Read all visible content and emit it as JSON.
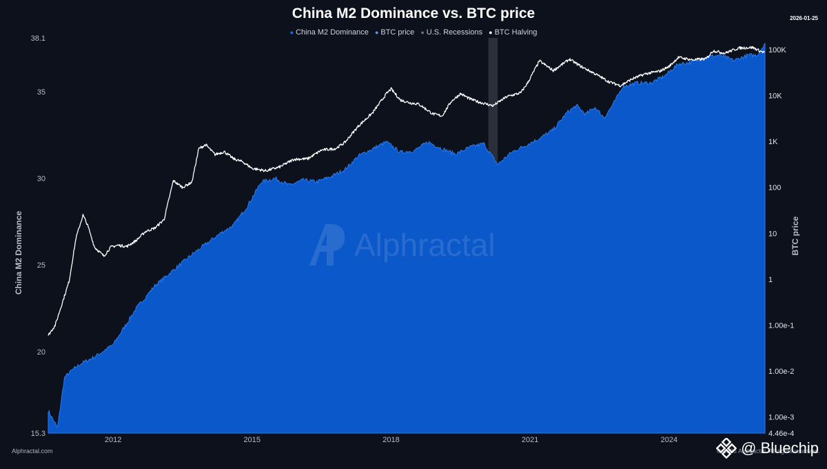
{
  "header": {
    "title": "China M2 Dominance vs. BTC price",
    "date": "2026-01-25"
  },
  "legend": [
    {
      "label": "China M2 Dominance",
      "color": "#1f6fe6"
    },
    {
      "label": "BTC price",
      "color": "#5b9bf5"
    },
    {
      "label": "U.S. Recessions",
      "color": "#6b7280"
    },
    {
      "label": "BTC Halving",
      "color": "#ffffff"
    }
  ],
  "footer": {
    "source": "Alphractal.com",
    "copyright": "© 2026 Alphractal. All rights reserved.",
    "watermark": "Alphractal",
    "overlay_brand": "@ Bluechip"
  },
  "chart_data": {
    "type": "area",
    "title": "China M2 Dominance vs. BTC price",
    "ylabel": "China M2 Dominance",
    "y2label": "BTC price",
    "ylim": [
      15.3,
      38.1
    ],
    "y_ticks": [
      "15.3",
      "20",
      "25",
      "30",
      "35",
      "38.1"
    ],
    "y2_scale": "log",
    "y2lim": [
      0.000446,
      180000
    ],
    "y2_ticks": [
      "4.46e-4",
      "1.00e-3",
      "1.00e-2",
      "1.00e-1",
      "1",
      "10",
      "100",
      "1K",
      "10K",
      "100K"
    ],
    "x_ticks": [
      "2012",
      "2015",
      "2018",
      "2021",
      "2024"
    ],
    "xlim": [
      2010.6,
      2026.07
    ],
    "recession": {
      "start": 2020.1,
      "end": 2020.3
    },
    "grid": false,
    "legend_position": "top-center",
    "series": [
      {
        "name": "China M2 Dominance",
        "color": "#1f6fe6",
        "x": [
          2010.6,
          2010.8,
          2010.95,
          2011.1,
          2011.3,
          2011.6,
          2012.0,
          2012.5,
          2012.9,
          2013.3,
          2013.7,
          2014.0,
          2014.3,
          2014.6,
          2014.9,
          2015.2,
          2015.5,
          2015.8,
          2016.1,
          2016.4,
          2016.7,
          2017.0,
          2017.3,
          2017.6,
          2017.9,
          2018.2,
          2018.5,
          2018.8,
          2019.1,
          2019.4,
          2019.7,
          2020.0,
          2020.3,
          2020.6,
          2020.9,
          2021.2,
          2021.5,
          2021.8,
          2022.0,
          2022.2,
          2022.4,
          2022.6,
          2022.8,
          2023.0,
          2023.3,
          2023.6,
          2023.9,
          2024.2,
          2024.5,
          2024.8,
          2025.1,
          2025.4,
          2025.7,
          2025.9,
          2026.07
        ],
        "values": [
          16.6,
          15.6,
          18.5,
          18.9,
          19.3,
          19.7,
          20.4,
          22.5,
          23.8,
          24.7,
          25.6,
          26.2,
          26.8,
          27.3,
          28.4,
          29.8,
          30.0,
          29.6,
          29.9,
          29.8,
          30.1,
          30.5,
          31.3,
          31.7,
          32.1,
          31.5,
          31.6,
          32.1,
          31.7,
          31.4,
          31.8,
          32.0,
          30.8,
          31.5,
          31.9,
          32.3,
          32.8,
          33.8,
          34.2,
          33.7,
          34.1,
          33.5,
          34.3,
          35.3,
          35.5,
          35.5,
          35.9,
          36.6,
          36.7,
          37.0,
          37.1,
          36.8,
          37.1,
          37.1,
          37.8
        ]
      },
      {
        "name": "BTC price",
        "color": "#ffffff",
        "x": [
          2010.6,
          2010.75,
          2010.9,
          2011.05,
          2011.2,
          2011.35,
          2011.45,
          2011.6,
          2011.8,
          2011.95,
          2012.1,
          2012.3,
          2012.5,
          2012.7,
          2012.9,
          2013.1,
          2013.3,
          2013.5,
          2013.7,
          2013.85,
          2014.0,
          2014.2,
          2014.4,
          2014.6,
          2014.8,
          2015.0,
          2015.3,
          2015.6,
          2015.9,
          2016.2,
          2016.5,
          2016.8,
          2017.0,
          2017.3,
          2017.6,
          2017.9,
          2018.0,
          2018.2,
          2018.4,
          2018.6,
          2018.9,
          2019.1,
          2019.3,
          2019.5,
          2019.7,
          2019.9,
          2020.2,
          2020.5,
          2020.8,
          2020.95,
          2021.2,
          2021.5,
          2021.85,
          2022.1,
          2022.4,
          2022.7,
          2022.95,
          2023.2,
          2023.5,
          2023.8,
          2024.0,
          2024.2,
          2024.5,
          2024.8,
          2024.95,
          2025.2,
          2025.5,
          2025.8,
          2026.0,
          2026.07
        ],
        "values": [
          0.06,
          0.1,
          0.3,
          0.9,
          8.0,
          25,
          15,
          5,
          3.2,
          5,
          5.5,
          5.2,
          7,
          11,
          13,
          20,
          140,
          100,
          130,
          700,
          850,
          520,
          600,
          420,
          360,
          260,
          230,
          280,
          410,
          420,
          650,
          700,
          950,
          2200,
          4200,
          11000,
          14000,
          8000,
          7000,
          6500,
          4000,
          3600,
          7500,
          11000,
          8500,
          7200,
          6000,
          9500,
          11500,
          19000,
          57000,
          35000,
          62000,
          43000,
          30000,
          20000,
          16500,
          23000,
          30000,
          34000,
          43000,
          68000,
          60000,
          63000,
          95000,
          84000,
          108000,
          112000,
          90000,
          88000
        ]
      }
    ]
  }
}
